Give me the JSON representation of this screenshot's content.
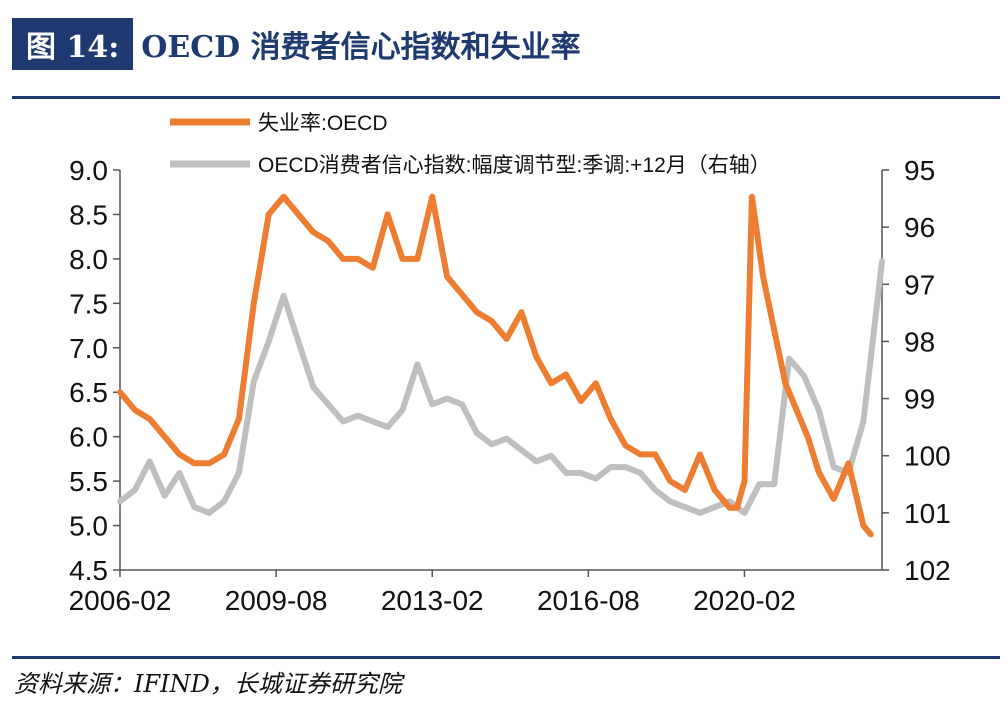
{
  "header": {
    "figure_label": "图 14:",
    "title": "OECD 消费者信心指数和失业率"
  },
  "footer": {
    "source": "资料来源：IFIND，长城证券研究院"
  },
  "chart_data": {
    "type": "line",
    "legend": [
      {
        "name": "失业率:OECD",
        "color": "#ed7d31"
      },
      {
        "name": "OECD消费者信心指数:幅度调节型:季调:+12月（右轴）",
        "color": "#bfbfbf"
      }
    ],
    "x_axis": {
      "tick_labels": [
        "2006-02",
        "2009-08",
        "2013-02",
        "2016-08",
        "2020-02"
      ],
      "tick_dates": [
        "2006-02",
        "2009-08",
        "2013-02",
        "2016-08",
        "2020-02"
      ],
      "range": [
        "2006-02",
        "2023-03"
      ]
    },
    "y_left": {
      "range": [
        4.5,
        9.0
      ],
      "ticks": [
        "9.0",
        "8.5",
        "8.0",
        "7.5",
        "7.0",
        "6.5",
        "6.0",
        "5.5",
        "5.0",
        "4.5"
      ],
      "tick_values": [
        9.0,
        8.5,
        8.0,
        7.5,
        7.0,
        6.5,
        6.0,
        5.5,
        5.0,
        4.5
      ]
    },
    "y_right": {
      "range": [
        95,
        102
      ],
      "inverted": true,
      "ticks": [
        "95",
        "96",
        "97",
        "98",
        "99",
        "100",
        "101",
        "102"
      ],
      "tick_values": [
        95,
        96,
        97,
        98,
        99,
        100,
        101,
        102
      ]
    },
    "series": [
      {
        "name": "失业率:OECD",
        "axis": "left",
        "color": "#ed7d31",
        "x": [
          "2006-02",
          "2006-06",
          "2006-10",
          "2007-02",
          "2007-06",
          "2007-10",
          "2008-02",
          "2008-06",
          "2008-10",
          "2009-02",
          "2009-06",
          "2009-10",
          "2010-02",
          "2010-06",
          "2010-10",
          "2011-02",
          "2011-06",
          "2011-10",
          "2012-02",
          "2012-06",
          "2012-10",
          "2013-02",
          "2013-06",
          "2013-10",
          "2014-02",
          "2014-06",
          "2014-10",
          "2015-02",
          "2015-06",
          "2015-10",
          "2016-02",
          "2016-06",
          "2016-10",
          "2017-02",
          "2017-06",
          "2017-10",
          "2018-02",
          "2018-06",
          "2018-10",
          "2019-02",
          "2019-06",
          "2019-10",
          "2019-12",
          "2020-02",
          "2020-04",
          "2020-07",
          "2020-10",
          "2021-01",
          "2021-04",
          "2021-07",
          "2021-10",
          "2022-02",
          "2022-06",
          "2022-10",
          "2022-12"
        ],
        "values": [
          6.5,
          6.3,
          6.2,
          6.0,
          5.8,
          5.7,
          5.7,
          5.8,
          6.2,
          7.5,
          8.5,
          8.7,
          8.5,
          8.3,
          8.2,
          8.0,
          8.0,
          7.9,
          8.5,
          8.0,
          8.0,
          8.7,
          7.8,
          7.6,
          7.4,
          7.3,
          7.1,
          7.4,
          6.9,
          6.6,
          6.7,
          6.4,
          6.6,
          6.2,
          5.9,
          5.8,
          5.8,
          5.5,
          5.4,
          5.8,
          5.4,
          5.2,
          5.2,
          5.5,
          8.7,
          7.8,
          7.2,
          6.6,
          6.3,
          6.0,
          5.6,
          5.3,
          5.7,
          5.0,
          4.9
        ]
      },
      {
        "name": "OECD消费者信心指数:幅度调节型:季调:+12月（右轴）",
        "axis": "right",
        "color": "#bfbfbf",
        "x": [
          "2006-02",
          "2006-06",
          "2006-10",
          "2007-02",
          "2007-06",
          "2007-10",
          "2008-02",
          "2008-06",
          "2008-10",
          "2009-02",
          "2009-06",
          "2009-10",
          "2010-02",
          "2010-06",
          "2010-10",
          "2011-02",
          "2011-06",
          "2011-10",
          "2012-02",
          "2012-06",
          "2012-10",
          "2013-02",
          "2013-06",
          "2013-10",
          "2014-02",
          "2014-06",
          "2014-10",
          "2015-02",
          "2015-06",
          "2015-10",
          "2016-02",
          "2016-06",
          "2016-10",
          "2017-02",
          "2017-06",
          "2017-10",
          "2018-02",
          "2018-06",
          "2018-10",
          "2019-02",
          "2019-06",
          "2019-10",
          "2020-02",
          "2020-06",
          "2020-10",
          "2021-02",
          "2021-06",
          "2021-10",
          "2022-02",
          "2022-06",
          "2022-10",
          "2023-03"
        ],
        "values": [
          100.8,
          100.6,
          100.1,
          100.7,
          100.3,
          100.9,
          101.0,
          100.8,
          100.3,
          98.7,
          98.0,
          97.2,
          98.0,
          98.8,
          99.1,
          99.4,
          99.3,
          99.4,
          99.5,
          99.2,
          98.4,
          99.1,
          99.0,
          99.1,
          99.6,
          99.8,
          99.7,
          99.9,
          100.1,
          100.0,
          100.3,
          100.3,
          100.4,
          100.2,
          100.2,
          100.3,
          100.6,
          100.8,
          100.9,
          101.0,
          100.9,
          100.8,
          101.0,
          100.5,
          100.5,
          98.3,
          98.6,
          99.2,
          100.2,
          100.3,
          99.4,
          96.6
        ]
      }
    ]
  }
}
